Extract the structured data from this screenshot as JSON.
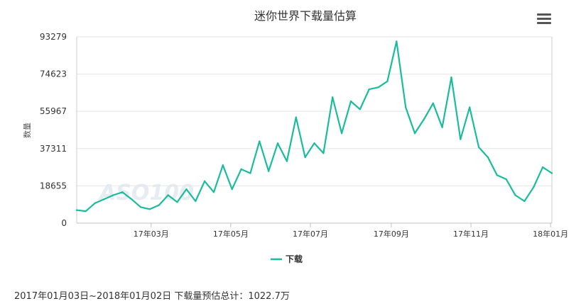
{
  "chart_data": {
    "type": "line",
    "title": "迷你世界下载量估算",
    "ylabel": "数量",
    "xlabel": "",
    "ylim": [
      0,
      93279
    ],
    "y_ticks": [
      "0",
      "18655",
      "37311",
      "55967",
      "74623",
      "93279"
    ],
    "x_ticks": [
      "17年03月",
      "17年05月",
      "17年07月",
      "17年09月",
      "17年11月",
      "18年01月"
    ],
    "x_range": [
      "2017-01-03",
      "2018-01-02"
    ],
    "grid": true,
    "legend_position": "bottom-center",
    "series": [
      {
        "name": "下载",
        "color": "#1abc9c",
        "x": [
          "2017-01-03",
          "2017-01-10",
          "2017-01-17",
          "2017-01-24",
          "2017-01-31",
          "2017-02-07",
          "2017-02-14",
          "2017-02-21",
          "2017-02-28",
          "2017-03-07",
          "2017-03-14",
          "2017-03-21",
          "2017-03-28",
          "2017-04-04",
          "2017-04-11",
          "2017-04-18",
          "2017-04-25",
          "2017-05-02",
          "2017-05-09",
          "2017-05-16",
          "2017-05-23",
          "2017-05-30",
          "2017-06-06",
          "2017-06-13",
          "2017-06-20",
          "2017-06-27",
          "2017-07-04",
          "2017-07-11",
          "2017-07-18",
          "2017-07-25",
          "2017-08-01",
          "2017-08-08",
          "2017-08-15",
          "2017-08-22",
          "2017-08-29",
          "2017-09-05",
          "2017-09-12",
          "2017-09-19",
          "2017-09-26",
          "2017-10-03",
          "2017-10-10",
          "2017-10-17",
          "2017-10-24",
          "2017-10-31",
          "2017-11-07",
          "2017-11-14",
          "2017-11-21",
          "2017-11-28",
          "2017-12-05",
          "2017-12-12",
          "2017-12-19",
          "2017-12-26",
          "2018-01-02"
        ],
        "values": [
          6500,
          6000,
          10000,
          12000,
          14000,
          15500,
          12000,
          8000,
          7000,
          9000,
          14000,
          10500,
          17000,
          11000,
          21000,
          15500,
          29000,
          17000,
          27000,
          25000,
          41000,
          26000,
          40000,
          31000,
          53000,
          33000,
          40000,
          35000,
          63000,
          45000,
          61000,
          57000,
          67000,
          68000,
          71000,
          91000,
          58000,
          45000,
          52000,
          60000,
          48000,
          73000,
          42000,
          58000,
          38000,
          33000,
          24000,
          22000,
          14000,
          11000,
          18000,
          28000,
          25000
        ]
      }
    ]
  },
  "ui": {
    "menu_icon": "hamburger-menu-icon",
    "watermark": "ASO100"
  },
  "footer": {
    "summary": "2017年01月03日~2018年01月02日 下载量预估总计：1022.7万"
  }
}
